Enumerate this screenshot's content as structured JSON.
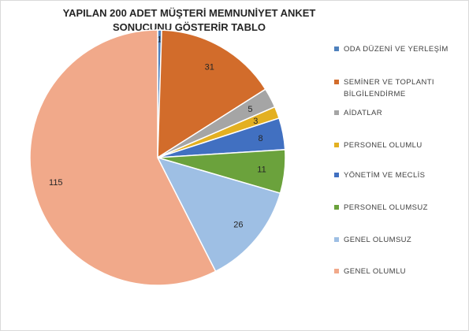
{
  "chart_data": {
    "type": "pie",
    "title_lines": [
      "YAPILAN 200 ADET MÜŞTERİ MEMNUNİYET ANKET",
      "SONUCUNU GÖSTERİR TABLO"
    ],
    "slices": [
      {
        "label": "ODA DÜZENİ VE YERLEŞİM",
        "value": 1,
        "color": "#4f81bd"
      },
      {
        "label": "SEMİNER VE TOPLANTI BİLGİLENDİRME",
        "value": 31,
        "color": "#d26c2b"
      },
      {
        "label": "AİDATLAR",
        "value": 5,
        "color": "#a5a5a5"
      },
      {
        "label": "PERSONEL OLUMLU",
        "value": 3,
        "color": "#e3b021"
      },
      {
        "label": "YÖNETİM VE MECLİS",
        "value": 8,
        "color": "#4170c1"
      },
      {
        "label": "PERSONEL OLUMSUZ",
        "value": 11,
        "color": "#6ba23c"
      },
      {
        "label": "GENEL OLUMSUZ",
        "value": 26,
        "color": "#9ebfe4"
      },
      {
        "label": "GENEL OLUMLU",
        "value": 115,
        "color": "#f1a98a"
      }
    ],
    "legend_position": "right",
    "data_labels": "inside"
  }
}
